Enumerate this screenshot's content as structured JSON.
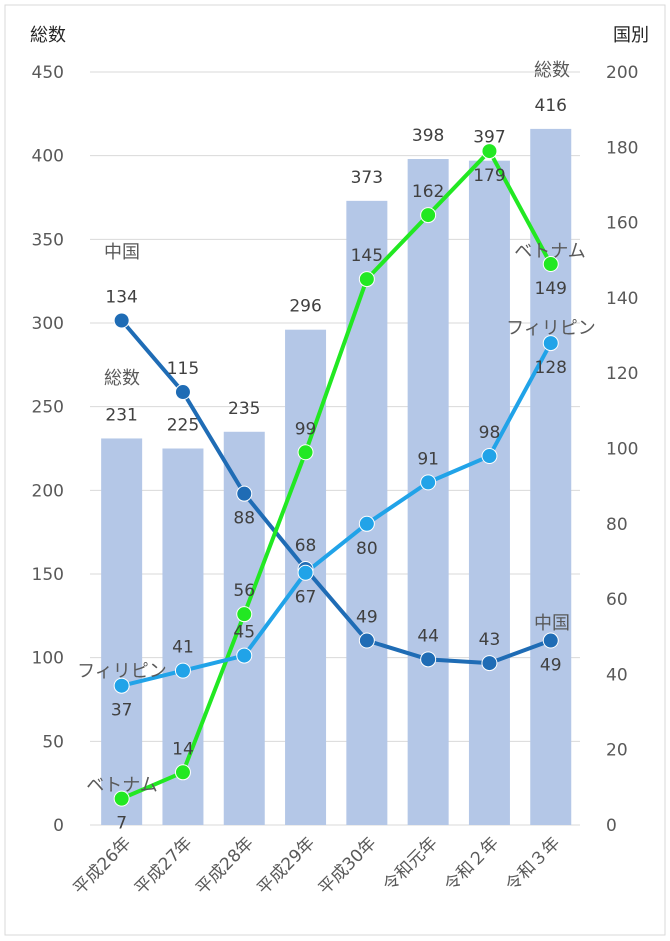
{
  "chart_data": {
    "type": "bar",
    "categories": [
      "平成26年",
      "平成27年",
      "平成28年",
      "平成29年",
      "平成30年",
      "令和元年",
      "令和２年",
      "令和３年"
    ],
    "left_axis_label": "総数",
    "right_axis_label": "国別",
    "ylim_left": [
      0,
      450
    ],
    "ylim_right": [
      0,
      200
    ],
    "yticks_left": [
      "0",
      "50",
      "100",
      "150",
      "200",
      "250",
      "300",
      "350",
      "400",
      "450"
    ],
    "yticks_right": [
      "0",
      "20",
      "40",
      "60",
      "80",
      "100",
      "120",
      "140",
      "160",
      "180",
      "200"
    ],
    "grid": true,
    "bars": {
      "name": "総数",
      "axis": "left",
      "color": "#b4c7e7",
      "values": [
        231,
        225,
        235,
        296,
        373,
        398,
        397,
        416
      ]
    },
    "series": [
      {
        "name": "中国",
        "axis": "right",
        "color": "#1f6cb5",
        "values": [
          134,
          115,
          88,
          68,
          49,
          44,
          43,
          49
        ]
      },
      {
        "name": "ベトナム",
        "axis": "right",
        "color": "#22e822",
        "values": [
          7,
          14,
          56,
          99,
          145,
          162,
          179,
          149
        ]
      },
      {
        "name": "フィリピン",
        "axis": "right",
        "color": "#21a3e8",
        "values": [
          37,
          41,
          45,
          67,
          80,
          91,
          98,
          128
        ]
      }
    ],
    "annotations": [
      {
        "text": "総数",
        "target": "bars",
        "index": 0
      },
      {
        "text": "総数",
        "target": "bars",
        "index": 7
      },
      {
        "text": "中国",
        "target": "中国",
        "index": 0
      },
      {
        "text": "中国",
        "target": "中国",
        "index": 7
      },
      {
        "text": "ベトナム",
        "target": "ベトナム",
        "index": 0
      },
      {
        "text": "ベトナム",
        "target": "ベトナム",
        "index": 7
      },
      {
        "text": "フィリピン",
        "target": "フィリピン",
        "index": 0
      },
      {
        "text": "フィリピン",
        "target": "フィリピン",
        "index": 7
      }
    ]
  },
  "colors": {
    "grid": "#d9d9d9",
    "border": "#d9d9d9",
    "point_outline": "#ffffff"
  }
}
